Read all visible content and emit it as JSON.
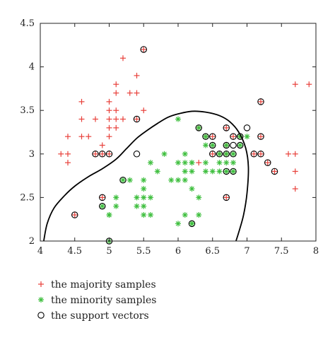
{
  "chart_data": {
    "type": "scatter",
    "title": "",
    "xlabel": "",
    "ylabel": "",
    "xlim": [
      4,
      8
    ],
    "ylim": [
      2,
      4.5
    ],
    "xticks": [
      "4",
      "4.5",
      "5",
      "5.5",
      "6",
      "6.5",
      "7",
      "7.5",
      "8"
    ],
    "yticks": [
      "2",
      "2.5",
      "3",
      "3.5",
      "4",
      "4.5"
    ],
    "grid": false,
    "legend_position": "bottom-left",
    "legend": [
      {
        "label": "the majority samples",
        "marker": "plus",
        "color": "#e8403a"
      },
      {
        "label": "the minority samples",
        "marker": "asterisk",
        "color": "#3fbf3f"
      },
      {
        "label": "the support vectors",
        "marker": "circle",
        "color": "#000000"
      }
    ],
    "series": [
      {
        "name": "the majority samples",
        "marker": "plus",
        "color": "#e8403a",
        "points": [
          [
            5.2,
            4.1
          ],
          [
            5.5,
            4.2
          ],
          [
            5.4,
            3.9
          ],
          [
            5.1,
            3.8
          ],
          [
            5.1,
            3.7
          ],
          [
            5.3,
            3.7
          ],
          [
            5.4,
            3.7
          ],
          [
            4.6,
            3.6
          ],
          [
            5.0,
            3.6
          ],
          [
            4.6,
            3.4
          ],
          [
            4.8,
            3.4
          ],
          [
            5.0,
            3.4
          ],
          [
            5.1,
            3.4
          ],
          [
            5.2,
            3.4
          ],
          [
            5.4,
            3.4
          ],
          [
            5.0,
            3.5
          ],
          [
            5.1,
            3.5
          ],
          [
            5.5,
            3.5
          ],
          [
            4.7,
            3.2
          ],
          [
            4.4,
            3.2
          ],
          [
            4.6,
            3.2
          ],
          [
            5.0,
            3.2
          ],
          [
            4.9,
            3.1
          ],
          [
            4.8,
            3.0
          ],
          [
            4.3,
            3.0
          ],
          [
            4.4,
            3.0
          ],
          [
            4.4,
            2.9
          ],
          [
            5.0,
            3.0
          ],
          [
            4.9,
            3.0
          ],
          [
            4.5,
            2.3
          ],
          [
            5.0,
            3.3
          ],
          [
            5.1,
            3.3
          ],
          [
            4.9,
            2.5
          ],
          [
            7.9,
            3.8
          ],
          [
            7.7,
            3.8
          ],
          [
            7.7,
            3.0
          ],
          [
            7.6,
            3.0
          ],
          [
            7.7,
            2.8
          ],
          [
            7.7,
            2.6
          ],
          [
            7.2,
            3.6
          ],
          [
            7.2,
            3.2
          ],
          [
            7.2,
            3.0
          ],
          [
            7.1,
            3.0
          ],
          [
            7.3,
            2.9
          ],
          [
            7.4,
            2.8
          ],
          [
            6.9,
            3.2
          ],
          [
            6.8,
            3.2
          ],
          [
            6.7,
            3.3
          ],
          [
            6.7,
            3.1
          ],
          [
            6.6,
            3.0
          ],
          [
            6.5,
            3.2
          ],
          [
            6.4,
            3.2
          ],
          [
            6.5,
            3.0
          ],
          [
            6.3,
            3.3
          ],
          [
            6.7,
            2.5
          ],
          [
            6.3,
            2.9
          ],
          [
            6.7,
            3.0
          ]
        ]
      },
      {
        "name": "the minority samples",
        "marker": "asterisk",
        "color": "#3fbf3f",
        "points": [
          [
            5.0,
            2.0
          ],
          [
            5.0,
            2.3
          ],
          [
            4.9,
            2.4
          ],
          [
            5.1,
            2.5
          ],
          [
            5.0,
            2.3
          ],
          [
            5.1,
            2.4
          ],
          [
            5.2,
            2.7
          ],
          [
            5.3,
            2.7
          ],
          [
            5.4,
            2.4
          ],
          [
            5.4,
            2.5
          ],
          [
            5.5,
            2.5
          ],
          [
            5.5,
            2.3
          ],
          [
            5.5,
            2.4
          ],
          [
            5.5,
            2.6
          ],
          [
            5.6,
            2.9
          ],
          [
            5.5,
            2.7
          ],
          [
            5.6,
            2.5
          ],
          [
            5.6,
            2.3
          ],
          [
            6.1,
            3.0
          ],
          [
            6.2,
            2.9
          ],
          [
            6.1,
            2.8
          ],
          [
            6.2,
            2.8
          ],
          [
            6.1,
            2.9
          ],
          [
            6.0,
            2.9
          ],
          [
            6.1,
            2.7
          ],
          [
            6.2,
            2.6
          ],
          [
            6.1,
            2.3
          ],
          [
            6.0,
            2.2
          ],
          [
            6.3,
            2.5
          ],
          [
            6.3,
            2.3
          ],
          [
            6.2,
            2.2
          ],
          [
            6.0,
            2.7
          ],
          [
            6.4,
            2.9
          ],
          [
            6.5,
            2.8
          ],
          [
            6.6,
            2.9
          ],
          [
            6.6,
            3.0
          ],
          [
            6.7,
            3.1
          ],
          [
            6.7,
            3.0
          ],
          [
            6.5,
            3.1
          ],
          [
            6.4,
            3.2
          ],
          [
            6.4,
            3.1
          ],
          [
            6.6,
            2.8
          ],
          [
            6.9,
            3.1
          ],
          [
            6.8,
            2.8
          ],
          [
            6.7,
            2.8
          ],
          [
            6.3,
            3.3
          ],
          [
            7.0,
            3.2
          ],
          [
            6.9,
            3.2
          ],
          [
            6.8,
            3.0
          ],
          [
            6.7,
            2.9
          ],
          [
            6.8,
            2.9
          ],
          [
            6.2,
            2.2
          ],
          [
            6.2,
            2.9
          ],
          [
            6.4,
            2.8
          ],
          [
            5.8,
            3.0
          ],
          [
            5.9,
            2.7
          ],
          [
            5.7,
            2.8
          ],
          [
            6.0,
            3.4
          ]
        ]
      },
      {
        "name": "the support vectors",
        "marker": "circle",
        "color": "#000000",
        "points": [
          [
            5.5,
            4.2
          ],
          [
            5.4,
            3.4
          ],
          [
            4.8,
            3.0
          ],
          [
            4.9,
            3.0
          ],
          [
            5.0,
            3.0
          ],
          [
            4.5,
            2.3
          ],
          [
            4.9,
            2.5
          ],
          [
            4.9,
            2.4
          ],
          [
            5.0,
            2.0
          ],
          [
            5.2,
            2.7
          ],
          [
            5.4,
            3.0
          ],
          [
            6.2,
            2.2
          ],
          [
            6.3,
            3.3
          ],
          [
            6.4,
            3.2
          ],
          [
            6.5,
            3.2
          ],
          [
            6.5,
            3.1
          ],
          [
            6.5,
            3.0
          ],
          [
            6.6,
            3.0
          ],
          [
            6.7,
            3.1
          ],
          [
            6.7,
            3.0
          ],
          [
            6.7,
            3.3
          ],
          [
            6.8,
            3.2
          ],
          [
            6.9,
            3.2
          ],
          [
            7.0,
            3.3
          ],
          [
            6.8,
            3.0
          ],
          [
            6.7,
            2.8
          ],
          [
            6.8,
            2.8
          ],
          [
            6.9,
            3.1
          ],
          [
            6.7,
            2.5
          ],
          [
            7.2,
            3.6
          ],
          [
            7.2,
            3.2
          ],
          [
            7.2,
            3.0
          ],
          [
            7.3,
            2.9
          ],
          [
            7.4,
            2.8
          ],
          [
            7.1,
            3.0
          ],
          [
            6.8,
            3.1
          ]
        ]
      }
    ],
    "decision_boundary": [
      [
        4.05,
        2.0
      ],
      [
        4.1,
        2.2
      ],
      [
        4.2,
        2.38
      ],
      [
        4.35,
        2.52
      ],
      [
        4.5,
        2.63
      ],
      [
        4.7,
        2.74
      ],
      [
        4.9,
        2.83
      ],
      [
        5.1,
        2.94
      ],
      [
        5.25,
        3.06
      ],
      [
        5.4,
        3.18
      ],
      [
        5.55,
        3.27
      ],
      [
        5.7,
        3.35
      ],
      [
        5.85,
        3.42
      ],
      [
        6.0,
        3.46
      ],
      [
        6.2,
        3.49
      ],
      [
        6.4,
        3.48
      ],
      [
        6.6,
        3.44
      ],
      [
        6.75,
        3.37
      ],
      [
        6.88,
        3.25
      ],
      [
        6.98,
        3.07
      ],
      [
        7.02,
        2.85
      ],
      [
        7.0,
        2.55
      ],
      [
        6.95,
        2.3
      ],
      [
        6.88,
        2.1
      ],
      [
        6.84,
        2.0
      ]
    ]
  }
}
